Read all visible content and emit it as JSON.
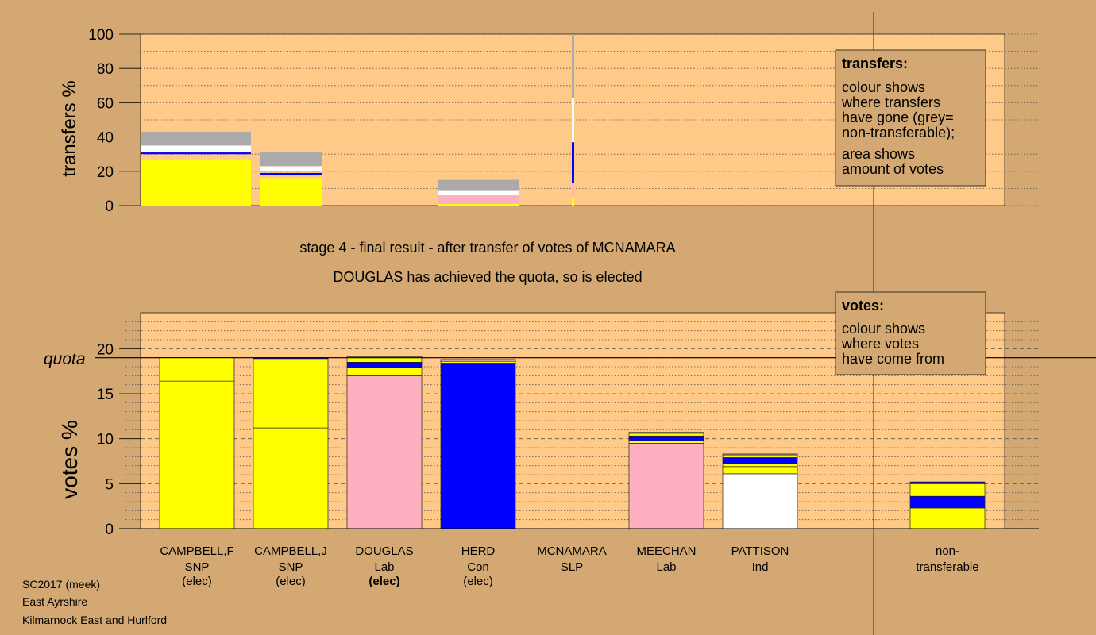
{
  "colors": {
    "page_bg": "#d4a872",
    "plot_bg": "#ffc988",
    "snp": "#ffff00",
    "lab": "#ffb0c0",
    "con": "#0000ff",
    "ind": "#ffffff",
    "slp": "#ff0000",
    "nontransferable": "#aaaaaa"
  },
  "heading": {
    "line1": "stage 4 - final result - after transfer of votes of MCNAMARA",
    "line2": "DOUGLAS has achieved the quota, so is elected"
  },
  "footer": {
    "line1": "SC2017 (meek)",
    "line2": "East Ayrshire",
    "line3": "Kilmarnock East and Hurlford"
  },
  "transfers_legend": {
    "title": "transfers:",
    "lines": [
      "colour shows",
      "where transfers",
      "have gone (grey=",
      "non-transferable);"
    ],
    "lines2": [
      "area shows",
      "amount of votes"
    ]
  },
  "votes_legend": {
    "title": "votes:",
    "lines": [
      "colour shows",
      "where votes",
      "have come from"
    ]
  },
  "chart_data": [
    {
      "type": "bar",
      "ylabel": "transfers %",
      "ylim": [
        0,
        100
      ],
      "yticks": [
        0,
        20,
        40,
        60,
        80,
        100
      ],
      "grid": "dotted",
      "columns": [
        {
          "name": "CAMPBELL,F",
          "segments": [
            {
              "party": "snp",
              "from": 0,
              "to": 26
            },
            {
              "party": "snp",
              "from": 26,
              "to": 27
            },
            {
              "party": "con",
              "from": 30,
              "to": 31
            },
            {
              "party": "ind",
              "from": 31,
              "to": 35
            },
            {
              "party": "nontransferable",
              "from": 35,
              "to": 43
            }
          ]
        },
        {
          "name": "CAMPBELL,J",
          "segments": [
            {
              "party": "snp",
              "from": 0,
              "to": 15
            },
            {
              "party": "snp",
              "from": 15,
              "to": 16
            },
            {
              "party": "con",
              "from": 18,
              "to": 19
            },
            {
              "party": "ind",
              "from": 20,
              "to": 23
            },
            {
              "party": "nontransferable",
              "from": 23,
              "to": 31
            }
          ]
        },
        {
          "name": "HERD",
          "segments": [
            {
              "party": "snp",
              "from": 0,
              "to": 1
            },
            {
              "party": "lab",
              "from": 1,
              "to": 6
            },
            {
              "party": "ind",
              "from": 6,
              "to": 9
            },
            {
              "party": "nontransferable",
              "from": 9,
              "to": 15
            }
          ]
        },
        {
          "name": "MCNAMARA",
          "segments": [
            {
              "party": "snp",
              "from": 0,
              "to": 5
            },
            {
              "party": "lab",
              "from": 5,
              "to": 13
            },
            {
              "party": "con",
              "from": 13,
              "to": 37
            },
            {
              "party": "ind",
              "from": 37,
              "to": 63
            },
            {
              "party": "nontransferable",
              "from": 63,
              "to": 100
            }
          ]
        }
      ]
    },
    {
      "type": "bar",
      "ylabel": "votes %",
      "ylim": [
        0,
        24
      ],
      "yticks": [
        0,
        5,
        10,
        15,
        20
      ],
      "quota": 19,
      "quota_label": "quota",
      "candidates": [
        {
          "name": "CAMPBELL,F",
          "party": "SNP",
          "status": "(elec)",
          "status_bold": false,
          "segments": [
            {
              "party": "snp",
              "value": 16.4
            },
            {
              "party": "snp",
              "value": 2.6
            }
          ]
        },
        {
          "name": "CAMPBELL,J",
          "party": "SNP",
          "status": "(elec)",
          "status_bold": false,
          "segments": [
            {
              "party": "snp",
              "value": 11.2
            },
            {
              "party": "snp",
              "value": 7.7
            },
            {
              "party": "con",
              "value": 0.1
            }
          ]
        },
        {
          "name": "DOUGLAS",
          "party": "Lab",
          "status": "(elec)",
          "status_bold": true,
          "segments": [
            {
              "party": "lab",
              "value": 17.0
            },
            {
              "party": "snp",
              "value": 0.9
            },
            {
              "party": "con",
              "value": 0.6
            },
            {
              "party": "snp",
              "value": 0.5
            },
            {
              "party": "ind",
              "value": 0.1
            }
          ]
        },
        {
          "name": "HERD",
          "party": "Con",
          "status": "(elec)",
          "status_bold": false,
          "segments": [
            {
              "party": "con",
              "value": 18.4
            },
            {
              "party": "snp",
              "value": 0.2
            },
            {
              "party": "lab",
              "value": 0.2
            }
          ]
        },
        {
          "name": "MCNAMARA",
          "party": "SLP",
          "status": "",
          "status_bold": false,
          "segments": []
        },
        {
          "name": "MEECHAN",
          "party": "Lab",
          "status": "",
          "status_bold": false,
          "segments": [
            {
              "party": "lab",
              "value": 9.5
            },
            {
              "party": "snp",
              "value": 0.3
            },
            {
              "party": "con",
              "value": 0.5
            },
            {
              "party": "snp",
              "value": 0.3
            },
            {
              "party": "ind",
              "value": 0.1
            }
          ]
        },
        {
          "name": "PATTISON",
          "party": "Ind",
          "status": "",
          "status_bold": false,
          "segments": [
            {
              "party": "ind",
              "value": 6.1
            },
            {
              "party": "snp",
              "value": 0.8
            },
            {
              "party": "snp",
              "value": 0.3
            },
            {
              "party": "con",
              "value": 0.7
            },
            {
              "party": "snp",
              "value": 0.3
            },
            {
              "party": "lab",
              "value": 0.1
            }
          ]
        },
        {
          "name": "non-",
          "party": "transferable",
          "status": "",
          "status_bold": false,
          "segments": [
            {
              "party": "snp",
              "value": 2.3
            },
            {
              "party": "con",
              "value": 1.3
            },
            {
              "party": "snp",
              "value": 1.4
            },
            {
              "party": "lab",
              "value": 0.1
            },
            {
              "party": "con",
              "value": 0.1
            }
          ]
        }
      ]
    }
  ]
}
